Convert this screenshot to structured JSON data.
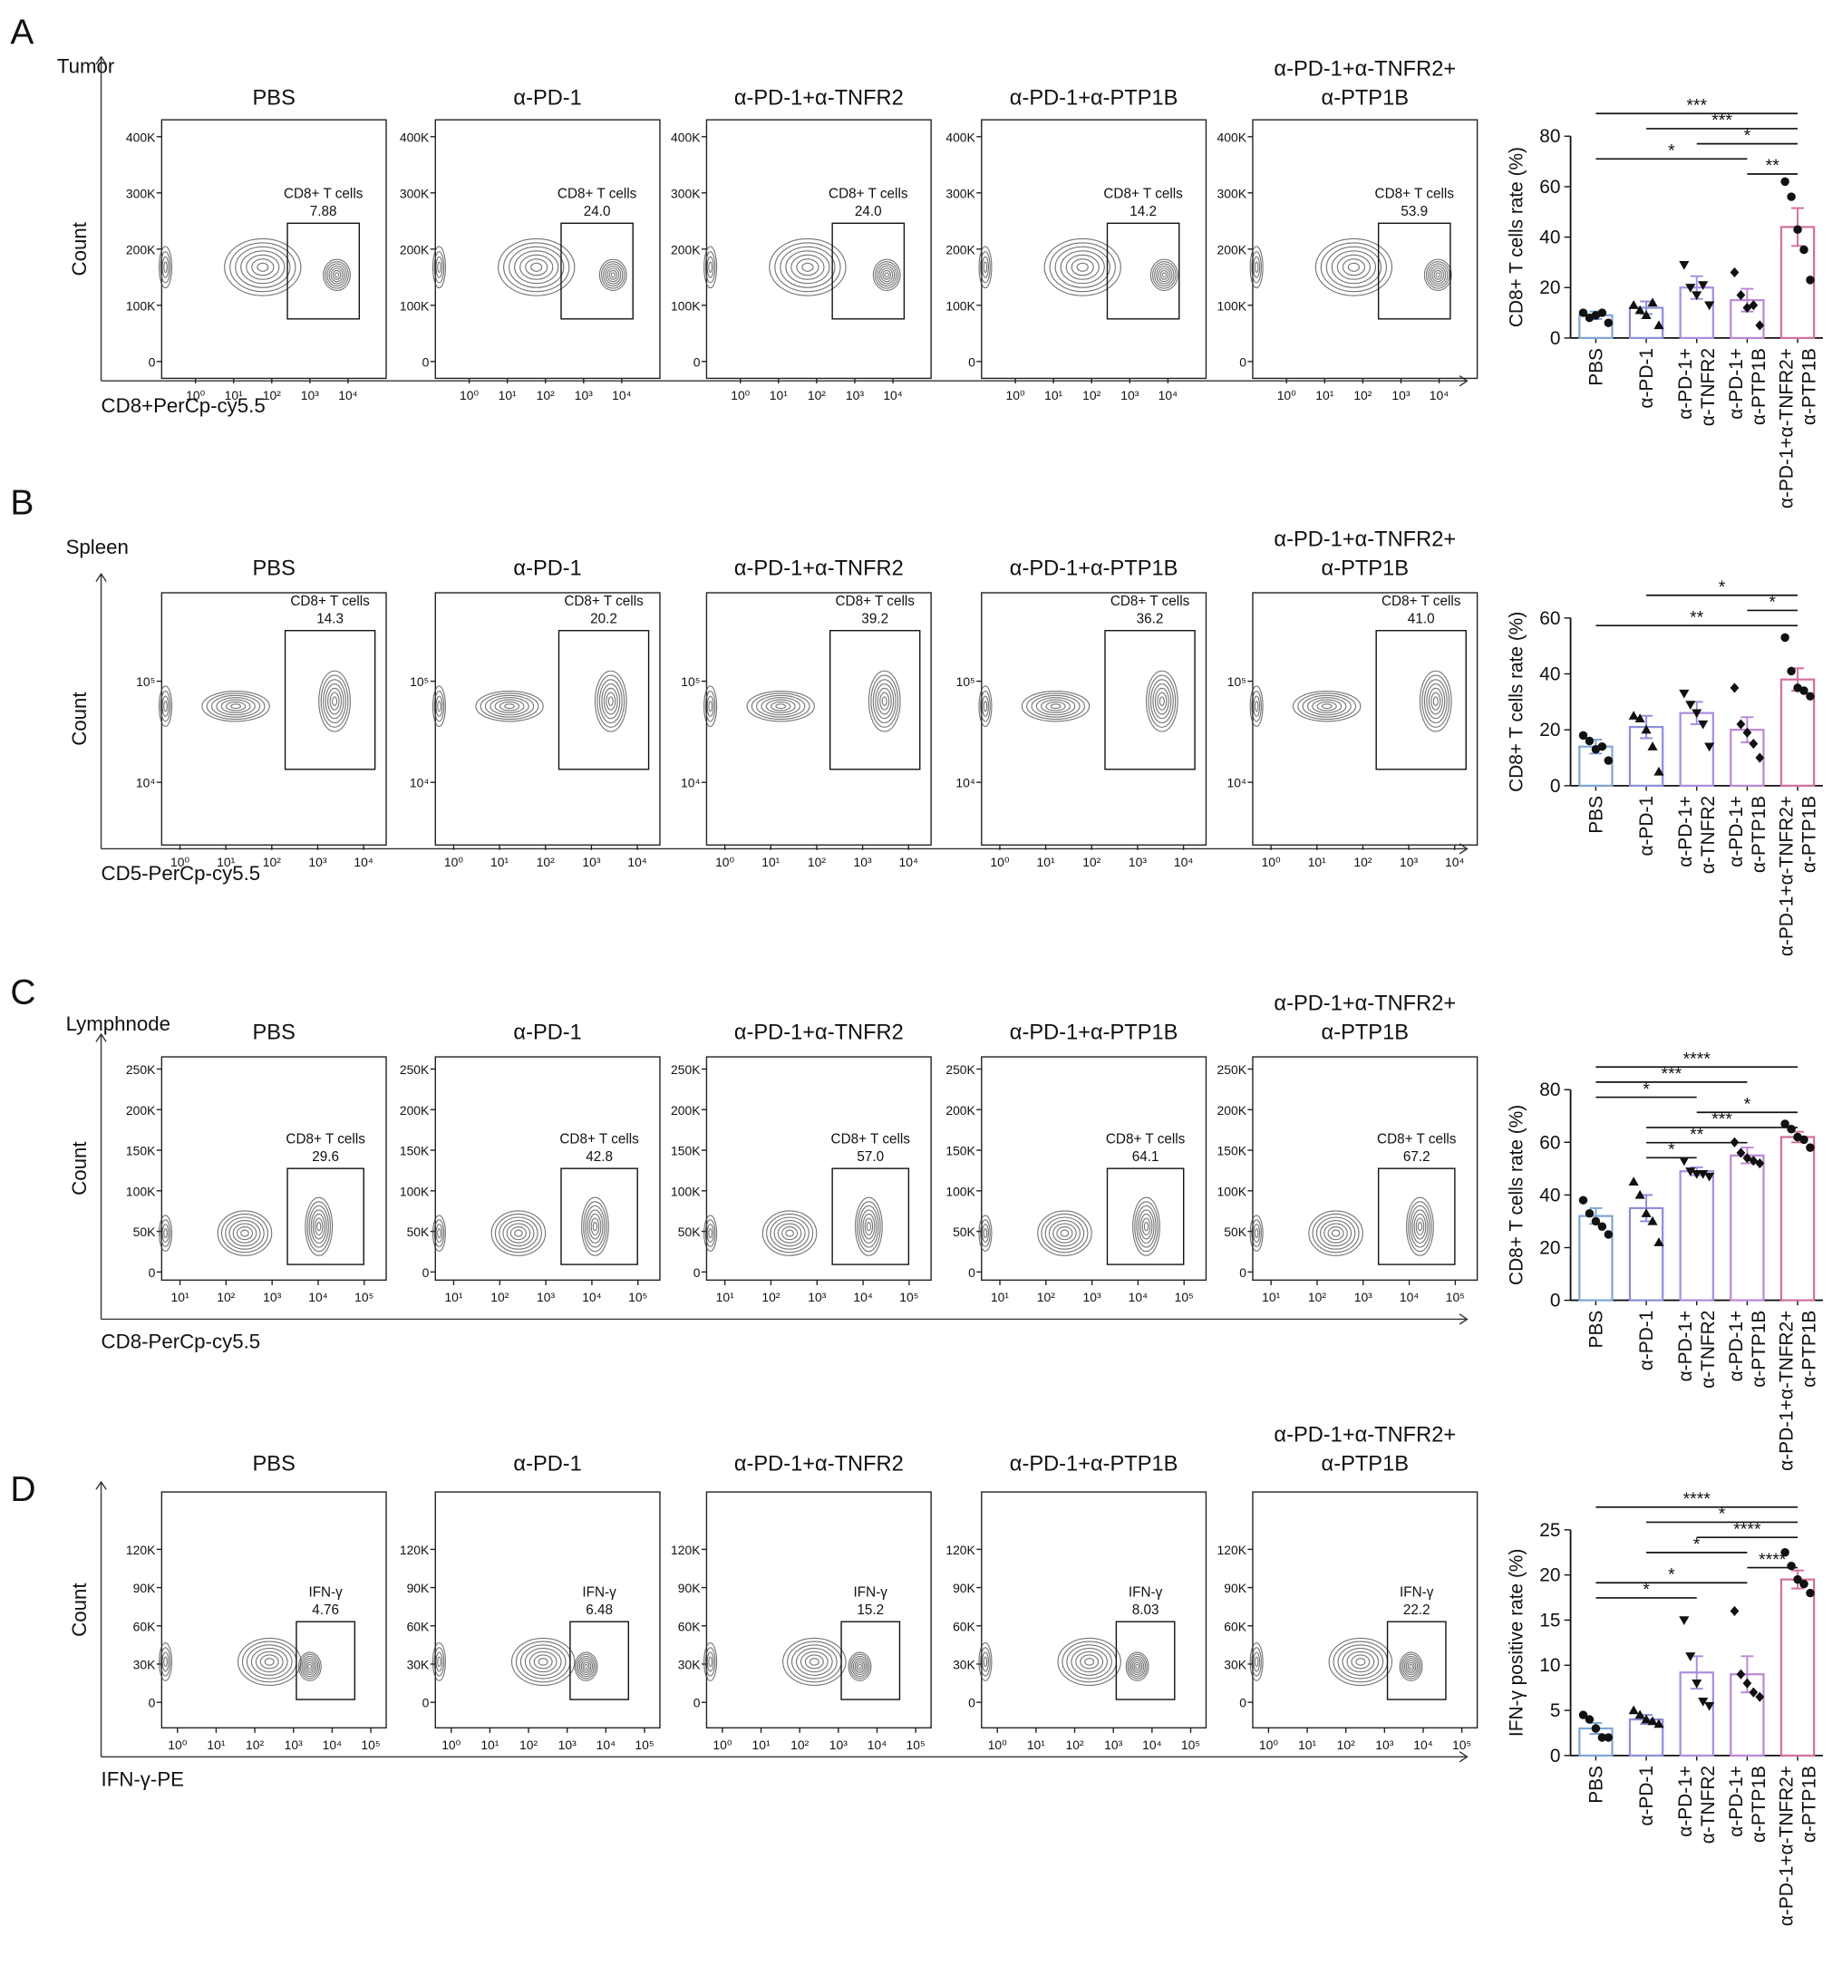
{
  "chart_data": [
    {
      "panel": "A",
      "tissue": "Tumor",
      "flow": {
        "type": "contour",
        "xlabel": "CD8+PerCp-cy5.5",
        "ylabel": "Count",
        "xscale": "log",
        "yscale": "linear",
        "xlim": [
          0.13,
          100000
        ],
        "ylim": [
          -30000,
          430000
        ],
        "xticks": [
          {
            "value": 1,
            "label": "10⁰"
          },
          {
            "value": 10,
            "label": "10¹"
          },
          {
            "value": 100,
            "label": "10²"
          },
          {
            "value": 1000,
            "label": "10³"
          },
          {
            "value": 10000,
            "label": "10⁴"
          }
        ],
        "yticks": [
          0,
          {
            "value": 100000,
            "label": "100K"
          },
          {
            "value": 200000,
            "label": "200K"
          },
          {
            "value": 300000,
            "label": "300K"
          },
          {
            "value": 400000,
            "label": "400K"
          }
        ],
        "plots": [
          {
            "title": [
              "PBS"
            ],
            "gate_label": "CD8+ T cells",
            "gate_value": "7.88"
          },
          {
            "title": [
              "α-PD-1"
            ],
            "gate_label": "CD8+ T cells",
            "gate_value": "24.0"
          },
          {
            "title": [
              "α-PD-1+α-TNFR2"
            ],
            "gate_label": "CD8+ T cells",
            "gate_value": "24.0"
          },
          {
            "title": [
              "α-PD-1+α-PTP1B"
            ],
            "gate_label": "CD8+ T cells",
            "gate_value": "14.2"
          },
          {
            "title": [
              "α-PD-1+α-TNFR2+",
              "α-PTP1B"
            ],
            "gate_label": "CD8+ T cells",
            "gate_value": "53.9"
          }
        ]
      },
      "bar": {
        "type": "bar",
        "ylabel": "CD8+ T cells rate (%)",
        "ylim": [
          0,
          80
        ],
        "yticks": [
          0,
          20,
          40,
          60,
          80
        ],
        "categories": [
          [
            "PBS"
          ],
          [
            "α-PD-1"
          ],
          [
            "α-PD-1+",
            "α-TNFR2"
          ],
          [
            "α-PD-1+",
            "α-PTP1B"
          ],
          [
            "α-PD-1+α-TNFR2+",
            "α-PTP1B"
          ]
        ],
        "values": [
          9,
          12,
          20,
          15,
          44
        ],
        "errors": [
          1.5,
          2.5,
          4.5,
          4.5,
          7.5
        ],
        "points": [
          [
            10,
            8,
            9,
            10,
            6
          ],
          [
            13,
            11,
            9,
            14,
            5
          ],
          [
            29,
            20,
            17,
            21,
            13
          ],
          [
            26,
            17,
            12,
            13,
            5
          ],
          [
            62,
            56,
            43,
            35,
            23
          ]
        ],
        "colors": [
          "#7fa6d6",
          "#8d8fd9",
          "#a98ee0",
          "#bd86d6",
          "#d36f9e"
        ],
        "markers": [
          "circle",
          "triangle",
          "triangle-down",
          "diamond",
          "circle"
        ],
        "comparisons": [
          {
            "groups": [
              0,
              4
            ],
            "label": "***"
          },
          {
            "groups": [
              1,
              4
            ],
            "label": "***"
          },
          {
            "groups": [
              2,
              4
            ],
            "label": "*"
          },
          {
            "groups": [
              0,
              3
            ],
            "label": "*"
          },
          {
            "groups": [
              3,
              4
            ],
            "label": "**"
          }
        ]
      }
    },
    {
      "panel": "B",
      "tissue": "Spleen",
      "flow": {
        "type": "contour",
        "xlabel": "CD5-PerCp-cy5.5",
        "ylabel": "Count",
        "xscale": "log",
        "yscale": "log",
        "xlim": [
          0.4,
          31000
        ],
        "ylim": [
          2400,
          750000
        ],
        "xticks": [
          {
            "value": 1,
            "label": "10⁰"
          },
          {
            "value": 10,
            "label": "10¹"
          },
          {
            "value": 100,
            "label": "10²"
          },
          {
            "value": 1000,
            "label": "10³"
          },
          {
            "value": 10000,
            "label": "10⁴"
          }
        ],
        "yticks": [
          {
            "value": 10000,
            "label": "10⁴"
          },
          {
            "value": 100000,
            "label": "10⁵"
          }
        ],
        "plots": [
          {
            "title": [
              "PBS"
            ],
            "gate_label": "CD8+ T cells",
            "gate_value": "14.3"
          },
          {
            "title": [
              "α-PD-1"
            ],
            "gate_label": "CD8+ T cells",
            "gate_value": "20.2"
          },
          {
            "title": [
              "α-PD-1+α-TNFR2"
            ],
            "gate_label": "CD8+ T cells",
            "gate_value": "39.2"
          },
          {
            "title": [
              "α-PD-1+α-PTP1B"
            ],
            "gate_label": "CD8+ T cells",
            "gate_value": "36.2"
          },
          {
            "title": [
              "α-PD-1+α-TNFR2+",
              "α-PTP1B"
            ],
            "gate_label": "CD8+ T cells",
            "gate_value": "41.0"
          }
        ]
      },
      "bar": {
        "type": "bar",
        "ylabel": "CD8+ T cells rate (%)",
        "ylim": [
          0,
          60
        ],
        "yticks": [
          0,
          20,
          40,
          60
        ],
        "categories": [
          [
            "PBS"
          ],
          [
            "α-PD-1"
          ],
          [
            "α-PD-1+",
            "α-TNFR2"
          ],
          [
            "α-PD-1+",
            "α-PTP1B"
          ],
          [
            "α-PD-1+α-TNFR2+",
            "α-PTP1B"
          ]
        ],
        "values": [
          14,
          21,
          26,
          20,
          38
        ],
        "errors": [
          2.5,
          4,
          4,
          4.5,
          4
        ],
        "points": [
          [
            18,
            16,
            13,
            14,
            9
          ],
          [
            25,
            24,
            20,
            14,
            5
          ],
          [
            33,
            29,
            26,
            22,
            14
          ],
          [
            35,
            22,
            19,
            15,
            10
          ],
          [
            53,
            41,
            35,
            34,
            32
          ]
        ],
        "colors": [
          "#7fa6d6",
          "#8d8fd9",
          "#a98ee0",
          "#bd86d6",
          "#d36f9e"
        ],
        "markers": [
          "circle",
          "triangle",
          "triangle-down",
          "diamond",
          "circle"
        ],
        "comparisons": [
          {
            "groups": [
              1,
              4
            ],
            "label": "*"
          },
          {
            "groups": [
              3,
              4
            ],
            "label": "*"
          },
          {
            "groups": [
              0,
              4
            ],
            "label": "**"
          }
        ]
      }
    },
    {
      "panel": "C",
      "tissue": "Lymphnode",
      "flow": {
        "type": "contour",
        "xlabel": "CD8-PerCp-cy5.5",
        "ylabel": "Count",
        "xscale": "log",
        "yscale": "linear",
        "xlim": [
          4,
          300000
        ],
        "ylim": [
          -10000,
          265000
        ],
        "xticks": [
          {
            "value": 10,
            "label": "10¹"
          },
          {
            "value": 100,
            "label": "10²"
          },
          {
            "value": 1000,
            "label": "10³"
          },
          {
            "value": 10000,
            "label": "10⁴"
          },
          {
            "value": 100000,
            "label": "10⁵"
          }
        ],
        "yticks": [
          0,
          {
            "value": 50000,
            "label": "50K"
          },
          {
            "value": 100000,
            "label": "100K"
          },
          {
            "value": 150000,
            "label": "150K"
          },
          {
            "value": 200000,
            "label": "200K"
          },
          {
            "value": 250000,
            "label": "250K"
          }
        ],
        "plots": [
          {
            "title": [
              "PBS"
            ],
            "gate_label": "CD8+ T cells",
            "gate_value": "29.6"
          },
          {
            "title": [
              "α-PD-1"
            ],
            "gate_label": "CD8+ T cells",
            "gate_value": "42.8"
          },
          {
            "title": [
              "α-PD-1+α-TNFR2"
            ],
            "gate_label": "CD8+ T cells",
            "gate_value": "57.0"
          },
          {
            "title": [
              "α-PD-1+α-PTP1B"
            ],
            "gate_label": "CD8+ T cells",
            "gate_value": "64.1"
          },
          {
            "title": [
              "α-PD-1+α-TNFR2+",
              "α-PTP1B"
            ],
            "gate_label": "CD8+ T cells",
            "gate_value": "67.2"
          }
        ]
      },
      "bar": {
        "type": "bar",
        "ylabel": "CD8+ T cells rate (%)",
        "ylim": [
          0,
          80
        ],
        "yticks": [
          0,
          20,
          40,
          60,
          80
        ],
        "categories": [
          [
            "PBS"
          ],
          [
            "α-PD-1"
          ],
          [
            "α-PD-1+",
            "α-TNFR2"
          ],
          [
            "α-PD-1+",
            "α-PTP1B"
          ],
          [
            "α-PD-1+α-TNFR2+",
            "α-PTP1B"
          ]
        ],
        "values": [
          32,
          35,
          49,
          55,
          62
        ],
        "errors": [
          3,
          5,
          1.5,
          3,
          2
        ],
        "points": [
          [
            38,
            33,
            30,
            28,
            25
          ],
          [
            45,
            40,
            33,
            30,
            22
          ],
          [
            53,
            49,
            48,
            48,
            47
          ],
          [
            60,
            56,
            54,
            53,
            52
          ],
          [
            67,
            65,
            62,
            61,
            58
          ]
        ],
        "colors": [
          "#7fa6d6",
          "#8d8fd9",
          "#a98ee0",
          "#bd86d6",
          "#d36f9e"
        ],
        "markers": [
          "circle",
          "triangle",
          "triangle-down",
          "diamond",
          "circle"
        ],
        "comparisons": [
          {
            "groups": [
              0,
              4
            ],
            "label": "****"
          },
          {
            "groups": [
              0,
              3
            ],
            "label": "***"
          },
          {
            "groups": [
              0,
              2
            ],
            "label": "*"
          },
          {
            "groups": [
              2,
              4
            ],
            "label": "*"
          },
          {
            "groups": [
              1,
              4
            ],
            "label": "***"
          },
          {
            "groups": [
              1,
              3
            ],
            "label": "**"
          },
          {
            "groups": [
              1,
              2
            ],
            "label": "*"
          }
        ]
      }
    },
    {
      "panel": "D",
      "flow": {
        "type": "contour",
        "xlabel": "IFN-γ-PE",
        "ylabel": "Count",
        "xscale": "log",
        "yscale": "linear",
        "xlim": [
          0.39,
          250000
        ],
        "ylim": [
          -20000,
          165000
        ],
        "xticks": [
          {
            "value": 1,
            "label": "10⁰"
          },
          {
            "value": 10,
            "label": "10¹"
          },
          {
            "value": 100,
            "label": "10²"
          },
          {
            "value": 1000,
            "label": "10³"
          },
          {
            "value": 10000,
            "label": "10⁴"
          },
          {
            "value": 100000,
            "label": "10⁵"
          }
        ],
        "yticks": [
          0,
          {
            "value": 30000,
            "label": "30K"
          },
          {
            "value": 60000,
            "label": "60K"
          },
          {
            "value": 90000,
            "label": "90K"
          },
          {
            "value": 120000,
            "label": "120K"
          }
        ],
        "plots": [
          {
            "title": [
              "PBS"
            ],
            "gate_label": "IFN-γ",
            "gate_value": "4.76"
          },
          {
            "title": [
              "α-PD-1"
            ],
            "gate_label": "IFN-γ",
            "gate_value": "6.48"
          },
          {
            "title": [
              "α-PD-1+α-TNFR2"
            ],
            "gate_label": "IFN-γ",
            "gate_value": "15.2"
          },
          {
            "title": [
              "α-PD-1+α-PTP1B"
            ],
            "gate_label": "IFN-γ",
            "gate_value": "8.03"
          },
          {
            "title": [
              "α-PD-1+α-TNFR2+",
              "α-PTP1B"
            ],
            "gate_label": "IFN-γ",
            "gate_value": "22.2"
          }
        ]
      },
      "bar": {
        "type": "bar",
        "ylabel": "IFN-γ positive rate (%)",
        "ylim": [
          0,
          25
        ],
        "yticks": [
          0,
          5,
          10,
          15,
          20,
          25
        ],
        "categories": [
          [
            "PBS"
          ],
          [
            "α-PD-1"
          ],
          [
            "α-PD-1+",
            "α-TNFR2"
          ],
          [
            "α-PD-1+",
            "α-PTP1B"
          ],
          [
            "α-PD-1+α-TNFR2+",
            "α-PTP1B"
          ]
        ],
        "values": [
          3,
          4,
          9.2,
          9,
          19.5
        ],
        "errors": [
          0.6,
          0.5,
          1.8,
          2,
          1
        ],
        "points": [
          [
            4.5,
            4,
            3,
            2,
            2
          ],
          [
            5,
            4.5,
            4,
            3.8,
            3.5
          ],
          [
            15,
            11,
            8,
            6,
            5.5
          ],
          [
            16,
            9,
            8,
            7,
            6.5
          ],
          [
            22.5,
            21,
            19.5,
            19,
            18
          ]
        ],
        "colors": [
          "#7fa6d6",
          "#8d8fd9",
          "#a98ee0",
          "#bd86d6",
          "#d36f9e"
        ],
        "markers": [
          "circle",
          "triangle",
          "triangle-down",
          "diamond",
          "circle"
        ],
        "comparisons": [
          {
            "groups": [
              0,
              4
            ],
            "label": "****"
          },
          {
            "groups": [
              1,
              4
            ],
            "label": "*"
          },
          {
            "groups": [
              2,
              4
            ],
            "label": "****"
          },
          {
            "groups": [
              1,
              3
            ],
            "label": "*"
          },
          {
            "groups": [
              3,
              4
            ],
            "label": "****"
          },
          {
            "groups": [
              0,
              3
            ],
            "label": "*"
          },
          {
            "groups": [
              0,
              2
            ],
            "label": "*"
          }
        ]
      }
    }
  ]
}
